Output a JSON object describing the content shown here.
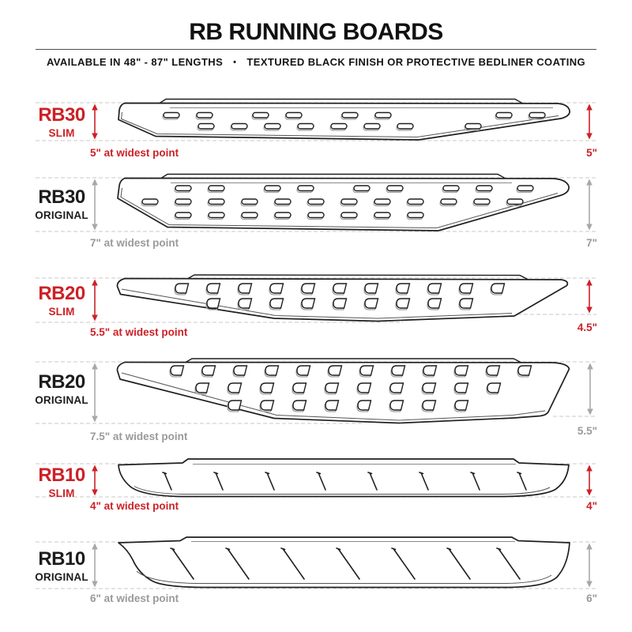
{
  "header": {
    "title": "RB RUNNING BOARDS",
    "subtitle_left": "AVAILABLE IN 48\" - 87\" LENGTHS",
    "subtitle_separator": "•",
    "subtitle_right": "TEXTURED BLACK FINISH OR PROTECTIVE BEDLINER COATING"
  },
  "colors": {
    "accent_red": "#cc2127",
    "dimension_gray": "#9a9a9a",
    "text_black": "#1c1c1c"
  },
  "rows": [
    {
      "model": "RB30",
      "variant": "SLIM",
      "left_dim": "5\" at widest point",
      "right_dim": "5\""
    },
    {
      "model": "RB30",
      "variant": "ORIGINAL",
      "left_dim": "7\" at widest point",
      "right_dim": "7\""
    },
    {
      "model": "RB20",
      "variant": "SLIM",
      "left_dim": "5.5\" at widest point",
      "right_dim": "4.5\""
    },
    {
      "model": "RB20",
      "variant": "ORIGINAL",
      "left_dim": "7.5\" at widest point",
      "right_dim": "5.5\""
    },
    {
      "model": "RB10",
      "variant": "SLIM",
      "left_dim": "4\" at widest point",
      "right_dim": "4\""
    },
    {
      "model": "RB10",
      "variant": "ORIGINAL",
      "left_dim": "6\" at widest point",
      "right_dim": "6\""
    }
  ]
}
